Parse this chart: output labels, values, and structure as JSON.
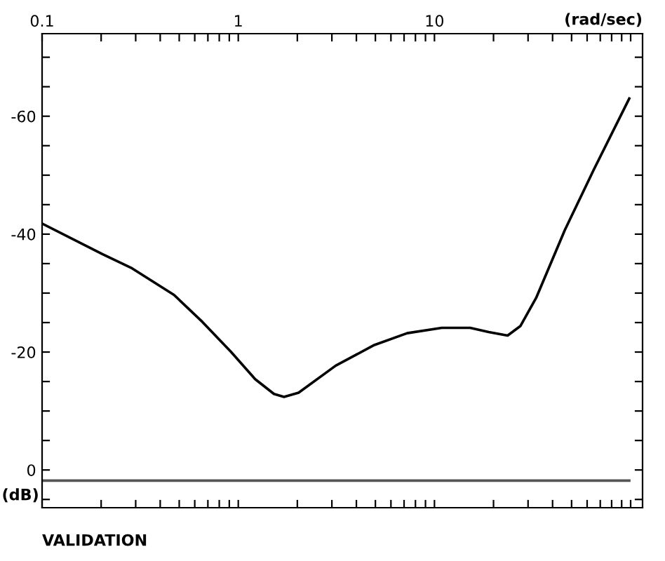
{
  "chart_data": {
    "type": "line",
    "title": "VALIDATION",
    "xlabel": "(rad/sec)",
    "ylabel": "(dB)",
    "log": "x",
    "grid": false,
    "legend": false,
    "marker": "none",
    "line_style": "solid",
    "xlim": [
      0.1,
      115
    ],
    "ylim": [
      6.4,
      -74
    ],
    "xticks": [
      0.1,
      {
        "value": 0.2,
        "label": null
      },
      {
        "value": 0.3,
        "label": null
      },
      {
        "value": 0.4,
        "label": null
      },
      {
        "value": 0.5,
        "label": null
      },
      {
        "value": 0.6,
        "label": null
      },
      {
        "value": 0.7,
        "label": null
      },
      {
        "value": 0.8,
        "label": null
      },
      {
        "value": 0.9,
        "label": null
      },
      1,
      {
        "value": 2,
        "label": null
      },
      {
        "value": 3,
        "label": null
      },
      {
        "value": 4,
        "label": null
      },
      {
        "value": 5,
        "label": null
      },
      {
        "value": 6,
        "label": null
      },
      {
        "value": 7,
        "label": null
      },
      {
        "value": 8,
        "label": null
      },
      {
        "value": 9,
        "label": null
      },
      10,
      {
        "value": 20,
        "label": null
      },
      {
        "value": 30,
        "label": null
      },
      {
        "value": 40,
        "label": null
      },
      {
        "value": 50,
        "label": null
      },
      {
        "value": 60,
        "label": null
      },
      {
        "value": 70,
        "label": null
      },
      {
        "value": 80,
        "label": null
      },
      {
        "value": 90,
        "label": null
      },
      {
        "value": 100,
        "label": null
      }
    ],
    "yticks": [
      {
        "value": 5,
        "label": null
      },
      0,
      {
        "value": -5,
        "label": null
      },
      {
        "value": -10,
        "label": null
      },
      {
        "value": -15,
        "label": null
      },
      -20,
      {
        "value": -25,
        "label": null
      },
      {
        "value": -30,
        "label": null
      },
      {
        "value": -35,
        "label": null
      },
      -40,
      {
        "value": -45,
        "label": null
      },
      {
        "value": -50,
        "label": null
      },
      {
        "value": -55,
        "label": null
      },
      -60,
      {
        "value": -65,
        "label": null
      },
      {
        "value": -70,
        "label": null
      }
    ],
    "series": [
      {
        "color": "#000000",
        "x": [
          0.1,
          0.203,
          0.284,
          0.47,
          0.657,
          0.92,
          1.22,
          1.52,
          1.71,
          2.03,
          3.14,
          4.94,
          7.26,
          10.9,
          15.2,
          18.9,
          23.6,
          27.4,
          33.0,
          46.2,
          64.6,
          98.4
        ],
        "values": [
          -41.8,
          -36.6,
          -34.3,
          -29.7,
          -25.1,
          -20.0,
          -15.4,
          -12.9,
          -12.4,
          -13.1,
          -17.7,
          -21.2,
          -23.2,
          -24.1,
          -24.1,
          -23.4,
          -22.8,
          -24.4,
          -29.2,
          -40.7,
          -50.8,
          -63.0
        ]
      },
      {
        "color": "#555555",
        "x": [
          0.1,
          98.4
        ],
        "values": [
          1.8,
          1.8
        ]
      }
    ]
  }
}
